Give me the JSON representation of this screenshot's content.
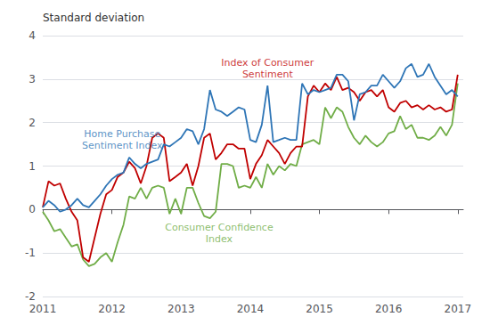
{
  "chart_data": {
    "type": "line",
    "ylabel": "Standard deviation",
    "xlim": [
      2011.0,
      2017.08
    ],
    "ylim": [
      -2,
      4
    ],
    "xticks": [
      2011,
      2012,
      2013,
      2014,
      2015,
      2016,
      2017
    ],
    "yticks": [
      -2,
      -1,
      0,
      1,
      2,
      3,
      4
    ],
    "grid": true,
    "x": [
      2011.0,
      2011.083,
      2011.167,
      2011.25,
      2011.333,
      2011.417,
      2011.5,
      2011.583,
      2011.667,
      2011.75,
      2011.833,
      2011.917,
      2012.0,
      2012.083,
      2012.167,
      2012.25,
      2012.333,
      2012.417,
      2012.5,
      2012.583,
      2012.667,
      2012.75,
      2012.833,
      2012.917,
      2013.0,
      2013.083,
      2013.167,
      2013.25,
      2013.333,
      2013.417,
      2013.5,
      2013.583,
      2013.667,
      2013.75,
      2013.833,
      2013.917,
      2014.0,
      2014.083,
      2014.167,
      2014.25,
      2014.333,
      2014.417,
      2014.5,
      2014.583,
      2014.667,
      2014.75,
      2014.833,
      2014.917,
      2015.0,
      2015.083,
      2015.167,
      2015.25,
      2015.333,
      2015.417,
      2015.5,
      2015.583,
      2015.667,
      2015.75,
      2015.833,
      2015.917,
      2016.0,
      2016.083,
      2016.167,
      2016.25,
      2016.333,
      2016.417,
      2016.5,
      2016.583,
      2016.667,
      2016.75,
      2016.833,
      2016.917,
      2017.0
    ],
    "series": [
      {
        "color": "#2E75B6",
        "values": [
          0.05,
          0.2,
          0.1,
          -0.05,
          0.0,
          0.1,
          0.25,
          0.1,
          0.05,
          0.2,
          0.35,
          0.55,
          0.7,
          0.8,
          0.85,
          1.2,
          1.05,
          0.95,
          1.05,
          1.1,
          1.15,
          1.5,
          1.45,
          1.55,
          1.65,
          1.85,
          1.8,
          1.5,
          1.85,
          2.75,
          2.3,
          2.25,
          2.15,
          2.25,
          2.35,
          2.3,
          1.6,
          1.55,
          1.95,
          2.85,
          1.55,
          1.6,
          1.65,
          1.6,
          1.6,
          2.9,
          2.65,
          2.75,
          2.7,
          2.75,
          2.8,
          3.1,
          3.1,
          2.95,
          2.05,
          2.65,
          2.7,
          2.85,
          2.85,
          3.1,
          2.95,
          2.8,
          2.95,
          3.25,
          3.35,
          3.05,
          3.1,
          3.35,
          3.05,
          2.85,
          2.65,
          2.75,
          2.6
        ]
      },
      {
        "color": "#C00000",
        "values": [
          0.05,
          0.65,
          0.55,
          0.6,
          0.25,
          -0.05,
          -0.25,
          -1.1,
          -1.2,
          -0.65,
          -0.1,
          0.35,
          0.45,
          0.75,
          0.85,
          1.1,
          0.95,
          0.6,
          1.0,
          1.65,
          1.75,
          1.65,
          0.65,
          0.75,
          0.85,
          1.05,
          0.55,
          1.0,
          1.65,
          1.75,
          1.15,
          1.3,
          1.5,
          1.5,
          1.4,
          1.4,
          0.7,
          1.05,
          1.25,
          1.6,
          1.45,
          1.3,
          1.05,
          1.3,
          1.45,
          1.45,
          2.6,
          2.85,
          2.7,
          2.9,
          2.75,
          3.05,
          2.75,
          2.8,
          2.7,
          2.5,
          2.7,
          2.75,
          2.6,
          2.75,
          2.35,
          2.25,
          2.45,
          2.5,
          2.35,
          2.4,
          2.3,
          2.4,
          2.3,
          2.35,
          2.25,
          2.3,
          3.1
        ]
      },
      {
        "color": "#70AD47",
        "values": [
          -0.05,
          -0.25,
          -0.5,
          -0.45,
          -0.65,
          -0.85,
          -0.8,
          -1.15,
          -1.3,
          -1.25,
          -1.1,
          -1.0,
          -1.2,
          -0.75,
          -0.35,
          0.3,
          0.25,
          0.5,
          0.25,
          0.5,
          0.55,
          0.5,
          -0.1,
          0.25,
          -0.1,
          0.5,
          0.5,
          0.15,
          -0.15,
          -0.2,
          -0.05,
          1.05,
          1.05,
          1.0,
          0.5,
          0.55,
          0.5,
          0.75,
          0.5,
          1.05,
          0.8,
          1.0,
          0.9,
          1.05,
          1.0,
          1.5,
          1.55,
          1.6,
          1.5,
          2.35,
          2.1,
          2.35,
          2.25,
          1.9,
          1.65,
          1.5,
          1.7,
          1.55,
          1.45,
          1.55,
          1.75,
          1.8,
          2.15,
          1.85,
          1.95,
          1.65,
          1.65,
          1.6,
          1.7,
          1.9,
          1.7,
          1.95,
          2.9
        ]
      }
    ],
    "annotations": [
      {
        "text": "Home Purchase\nSentiment Index",
        "x": 2012.15,
        "y": 1.6,
        "color": "#2E75B6"
      },
      {
        "text": "Index of Consumer\nSentiment",
        "x": 2014.25,
        "y": 3.25,
        "color": "#C00000"
      },
      {
        "text": "Consumer Confidence\nIndex",
        "x": 2013.55,
        "y": -0.55,
        "color": "#70AD47"
      }
    ]
  }
}
